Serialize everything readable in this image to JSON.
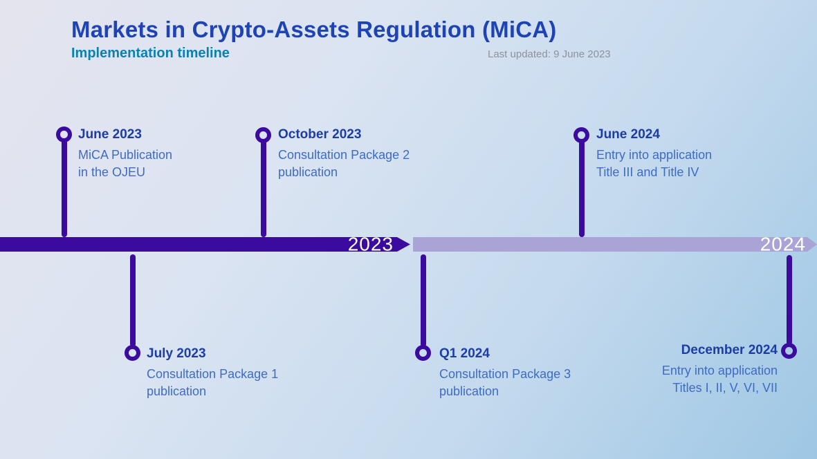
{
  "header": {
    "title": "Markets in Crypto-Assets Regulation (MiCA)",
    "subtitle": "Implementation timeline",
    "last_updated": "Last updated: 9 June 2023"
  },
  "timeline": {
    "segments": [
      {
        "label": "2023",
        "color": "#3a0b9e"
      },
      {
        "label": "2024",
        "color": "#a9a4d5"
      }
    ],
    "events": [
      {
        "date": "June 2023",
        "line1": "MiCA Publication",
        "line2": "in the OJEU",
        "position": "above"
      },
      {
        "date": "October 2023",
        "line1": "Consultation Package 2",
        "line2": "publication",
        "position": "above"
      },
      {
        "date": "June 2024",
        "line1": "Entry into application",
        "line2": "Title III and Title IV",
        "position": "above"
      },
      {
        "date": "July 2023",
        "line1": "Consultation Package 1",
        "line2": "publication",
        "position": "below"
      },
      {
        "date": "Q1 2024",
        "line1": "Consultation Package 3",
        "line2": "publication",
        "position": "below"
      },
      {
        "date": "December 2024",
        "line1": "Entry into application",
        "line2": "Titles I, II, V, VI, VII",
        "position": "below"
      }
    ]
  },
  "colors": {
    "accent_dark_purple": "#3a0b9e",
    "accent_light_purple": "#a9a4d5",
    "title_blue": "#1d43b5",
    "subtitle_teal": "#0c80af",
    "event_date_blue": "#1c3ca8",
    "event_desc_blue": "#3e6bc5",
    "muted_gray": "#8d929b",
    "bar_label_white": "#ffffff"
  }
}
